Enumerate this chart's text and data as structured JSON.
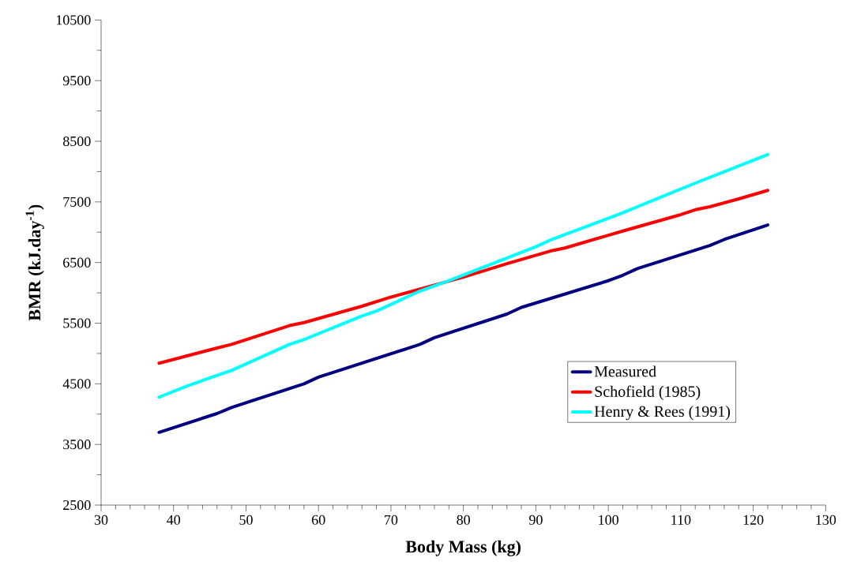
{
  "chart_data": {
    "type": "line",
    "xlabel": "Body Mass (kg)",
    "ylabel": "BMR (kJ.day$^{-1}$)",
    "xlim": [
      30,
      130
    ],
    "xticks": [
      30,
      40,
      50,
      60,
      70,
      80,
      90,
      100,
      110,
      120,
      130
    ],
    "ylim": [
      2500,
      10500
    ],
    "yticks": [
      2500,
      3500,
      4500,
      5500,
      6500,
      7500,
      8500,
      9500,
      10500
    ],
    "grid": false,
    "legend": "bottom right",
    "marker": "none",
    "line_style": "solid",
    "series": [
      {
        "name": "Measured",
        "color": "#000080",
        "x": [
          38,
          46,
          48,
          58,
          60,
          74,
          76,
          86,
          88,
          100,
          102,
          104,
          114,
          116,
          122
        ],
        "values": [
          3700,
          4010,
          4110,
          4500,
          4610,
          5150,
          5260,
          5650,
          5760,
          6200,
          6290,
          6400,
          6780,
          6880,
          7120
        ]
      },
      {
        "name": "Schofield (1985)",
        "color": "#ff0000",
        "x": [
          38,
          46,
          48,
          56,
          58,
          66,
          70,
          80,
          86,
          92,
          94,
          102,
          110,
          112,
          114,
          118,
          122
        ],
        "values": [
          4840,
          5090,
          5150,
          5460,
          5510,
          5780,
          5930,
          6260,
          6480,
          6690,
          6740,
          7020,
          7290,
          7370,
          7420,
          7550,
          7690
        ]
      },
      {
        "name": "Henry & Rees (1991)",
        "color": "#00ffff",
        "x": [
          38,
          42,
          46,
          48,
          56,
          58,
          66,
          68,
          74,
          78,
          90,
          92,
          102,
          104,
          112,
          122
        ],
        "values": [
          4280,
          4470,
          4640,
          4720,
          5150,
          5230,
          5620,
          5700,
          6030,
          6200,
          6760,
          6870,
          7320,
          7420,
          7810,
          8280
        ]
      }
    ]
  }
}
